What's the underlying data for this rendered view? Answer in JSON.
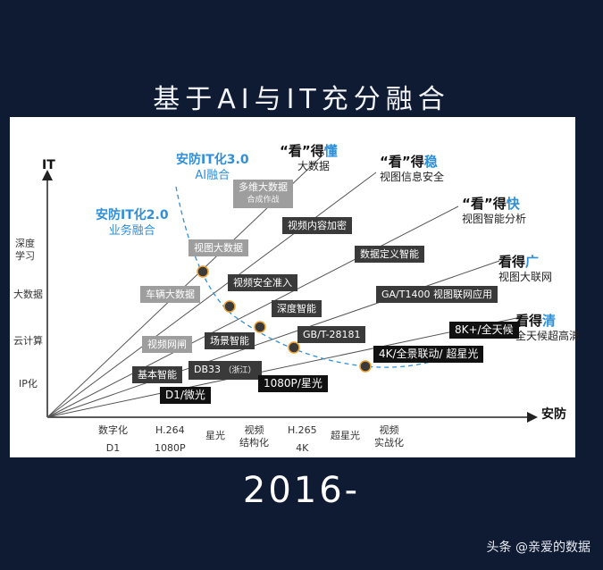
{
  "headline": "基于AI与IT充分融合",
  "year": "2016-",
  "credit": "头条 @亲爱的数据",
  "axes": {
    "y_title": "IT",
    "x_title": "安防"
  },
  "y_levels": [
    {
      "line1": "深度",
      "line2": "学习"
    },
    {
      "line1": "大数据",
      "line2": ""
    },
    {
      "line1": "云计算",
      "line2": ""
    },
    {
      "line1": "IP化",
      "line2": ""
    }
  ],
  "x_levels": [
    {
      "line1": "数字化",
      "line2": "D1"
    },
    {
      "line1": "H.264",
      "line2": "1080P"
    },
    {
      "line1": "星光",
      "line2": ""
    },
    {
      "line1": "视频",
      "line2": "结构化"
    },
    {
      "line1": "H.265",
      "line2": "4K"
    },
    {
      "line1": "超星光",
      "line2": ""
    },
    {
      "line1": "视频",
      "line2": "实战化"
    }
  ],
  "generations": [
    {
      "title": "安防IT化3.0",
      "subtitle": "AI融合"
    },
    {
      "title": "安防IT化2.0",
      "subtitle": "业务融合"
    }
  ],
  "stages": [
    {
      "pre": "“看”得",
      "hl": "懂",
      "sub": "大数据"
    },
    {
      "pre": "“看”得",
      "hl": "稳",
      "sub": "视图信息安全"
    },
    {
      "pre": "“看”得",
      "hl": "快",
      "sub": "视图智能分析"
    },
    {
      "pre": "看得",
      "hl": "广",
      "sub": "视图大联网"
    },
    {
      "pre": "看得",
      "hl": "清",
      "sub": "全天候超高清"
    }
  ],
  "labels": {
    "l01": "多维大数据",
    "l01b": "合成作战",
    "l02": "视频内容加密",
    "l03": "视图大数据",
    "l04": "数据定义智能",
    "l05": "车辆大数据",
    "l06": "视频安全准入",
    "l07": "GA/T1400 视图联网应用",
    "l08": "深度智能",
    "l09": "8K+/全天候",
    "l10": "视频网闸",
    "l11": "场景智能",
    "l12": "GB/T-28181",
    "l13": "4K/全景联动/ 超星光",
    "l14": "基本智能",
    "l15": "DB33",
    "l15b": "（浙江）",
    "l16": "D1/微光",
    "l17": "1080P/星光"
  },
  "colors": {
    "background": "#0f1a33",
    "panel": "#ffffff",
    "accent": "#2f8fd8",
    "line": "#555555",
    "dot": "#3a3a3a",
    "dot_ring": "#f0a030",
    "label_light": "#9e9e9e",
    "label_dark": "#3a3a3a",
    "label_black": "#111111"
  }
}
